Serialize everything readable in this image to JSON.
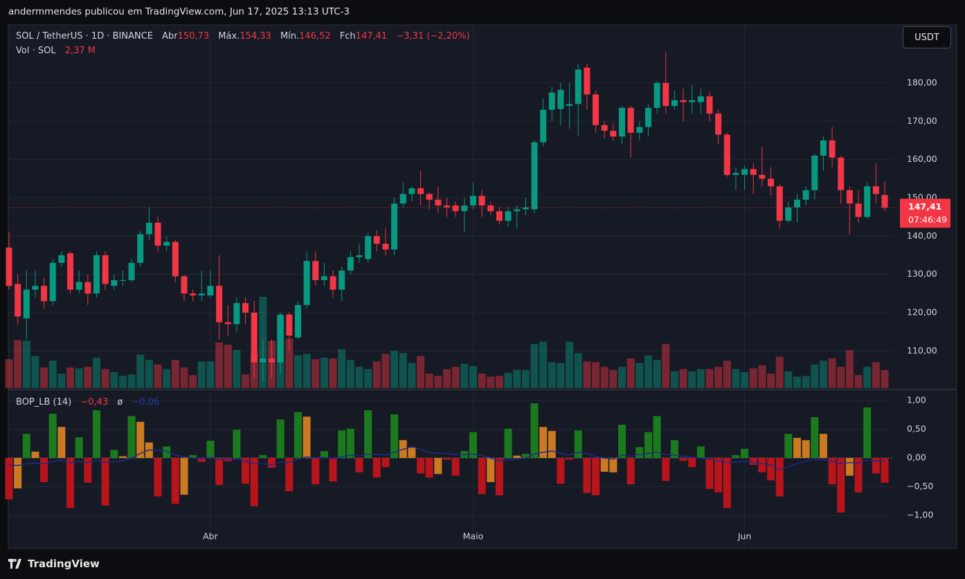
{
  "header": {
    "attribution": "andermmendes publicou em TradingView.com, Jun 17, 2025 13:13 UTC-3"
  },
  "footer": {
    "brand": "TradingView"
  },
  "chart_data": [
    {
      "type": "candlestick",
      "title": "SOL / TetherUS · 1D · BINANCE",
      "legend": {
        "open_label": "Abr",
        "open": "150,73",
        "high_label": "Máx.",
        "high": "154,33",
        "low_label": "Mín.",
        "low": "146,52",
        "close_label": "Fch",
        "close": "147,41",
        "change": "−3,31 (−2,20%)"
      },
      "volume_title": "Vol · SOL",
      "volume_value_label": "2,37 M",
      "currency": "USDT",
      "last_price_label": "147,41",
      "countdown": "07:46:49",
      "up_color": "#089981",
      "down_color": "#f23645",
      "categories": [
        null,
        null,
        null,
        null,
        null,
        null,
        null,
        null,
        null,
        null,
        null,
        null,
        null,
        null,
        null,
        null,
        null,
        null,
        null,
        null,
        null,
        null,
        null,
        "Abr",
        null,
        null,
        null,
        null,
        null,
        null,
        null,
        null,
        null,
        null,
        null,
        null,
        null,
        null,
        null,
        null,
        null,
        null,
        null,
        null,
        null,
        null,
        null,
        null,
        null,
        null,
        null,
        null,
        null,
        "Maio",
        null,
        null,
        null,
        null,
        null,
        null,
        null,
        null,
        null,
        null,
        null,
        null,
        null,
        null,
        null,
        null,
        null,
        null,
        null,
        null,
        null,
        null,
        null,
        null,
        null,
        null,
        null,
        null,
        null,
        null,
        "Jun",
        null,
        null,
        null,
        null,
        null,
        null,
        null,
        null,
        null,
        null,
        null,
        null,
        null,
        null,
        null,
        null
      ],
      "open": [
        137,
        127.5,
        118.5,
        126,
        127,
        123,
        133,
        135.5,
        126,
        128,
        125,
        135,
        127,
        128.3,
        128.5,
        133,
        140.5,
        143.5,
        137.5,
        138.5,
        129.5,
        125,
        124.5,
        124.5,
        127,
        117.5,
        117,
        122.5,
        120,
        107,
        108,
        107,
        119.5,
        113.5,
        122,
        133.5,
        128.5,
        129.5,
        126,
        131,
        134.5,
        134,
        140,
        138,
        136.5,
        148.5,
        151,
        152.5,
        151,
        149.5,
        148,
        148,
        146.5,
        148,
        150.5,
        148,
        146.5,
        144,
        146.5,
        147,
        147,
        164.5,
        173,
        173.2,
        174,
        174.5,
        184,
        177,
        169,
        167.5,
        166,
        173.5,
        167,
        168.5,
        173.5,
        180,
        174,
        175.5,
        175,
        175,
        176.5,
        172,
        166.5,
        156,
        156,
        157.5,
        156,
        155,
        153,
        144,
        147.5,
        149.5,
        152,
        161,
        165,
        160.5,
        152,
        148.5,
        145,
        153,
        150.73
      ],
      "high": [
        141,
        130,
        131,
        131,
        129,
        134,
        136,
        136,
        131,
        130,
        136,
        136,
        130,
        131,
        134,
        141.5,
        147.5,
        145,
        140,
        139,
        130,
        126,
        131,
        131,
        135,
        122,
        124,
        124,
        123,
        113,
        113,
        120,
        120,
        123,
        136,
        136,
        133,
        131,
        132,
        136,
        138,
        141,
        141.5,
        142,
        150,
        154,
        153,
        157,
        151.5,
        153,
        150,
        149,
        150,
        154,
        152,
        149,
        147.5,
        147.5,
        148,
        150,
        165,
        176,
        179,
        180,
        180,
        185,
        185,
        178,
        170,
        169.5,
        174,
        174,
        170,
        174.5,
        180.5,
        188,
        178,
        178.5,
        179.5,
        178.5,
        177.5,
        173,
        167,
        158,
        158.5,
        159,
        163.5,
        158,
        153.5,
        149,
        151,
        153,
        161.5,
        166,
        168.5,
        161,
        153,
        152,
        154,
        159,
        154.33
      ],
      "low": [
        126,
        117,
        113,
        124,
        121,
        122,
        132,
        125,
        125,
        122,
        124,
        126,
        126,
        127,
        128,
        132,
        139,
        136,
        136,
        128,
        123,
        123,
        123,
        124,
        113,
        114,
        115,
        117,
        103,
        102,
        103,
        104,
        110,
        113,
        121,
        127,
        127,
        124,
        123,
        130,
        133,
        133,
        136,
        135,
        135,
        147.5,
        149,
        148,
        147,
        146,
        145,
        145,
        141,
        147,
        145,
        145.5,
        143,
        142.5,
        142,
        145.5,
        146,
        163.5,
        170,
        169,
        168,
        166,
        173,
        167,
        165.5,
        165,
        164,
        160.5,
        165,
        166,
        172,
        172,
        173,
        170,
        172,
        172,
        170,
        164,
        155.5,
        152,
        152,
        151,
        153,
        150.5,
        142,
        143.5,
        143.5,
        148,
        149.5,
        157,
        158,
        148.5,
        140.5,
        143.5,
        144.5,
        148.5,
        146.52
      ],
      "close": [
        127,
        119,
        126,
        127,
        123,
        133,
        135,
        126,
        128,
        125,
        135,
        127.5,
        128.5,
        128.5,
        133,
        140.5,
        143.5,
        137.5,
        138.5,
        129.5,
        125,
        124.5,
        125,
        127,
        117.5,
        117,
        122.5,
        120,
        107,
        108,
        107,
        119.5,
        114,
        122,
        133.5,
        128.5,
        129.5,
        126,
        131,
        134.5,
        135,
        140,
        138,
        136.5,
        148.5,
        151,
        152.5,
        151,
        149.5,
        148,
        147.5,
        146.5,
        148,
        150.5,
        148,
        146.5,
        144,
        146.5,
        147,
        147.5,
        164.5,
        173,
        177.5,
        178.2,
        174.5,
        183.5,
        177,
        169,
        167.5,
        166,
        173.5,
        167,
        168.5,
        173.5,
        180,
        174,
        175.5,
        175,
        175.5,
        176.5,
        172,
        166.5,
        156,
        156.5,
        157.5,
        156,
        155,
        153,
        144,
        147.5,
        149.5,
        152,
        161,
        165,
        160.5,
        152,
        148.5,
        145,
        153,
        151,
        147.41
      ],
      "volume": [
        3.8,
        6.3,
        6.2,
        4.2,
        2.7,
        3.6,
        1.9,
        2.7,
        2.6,
        2.8,
        4.0,
        2.5,
        2.1,
        1.6,
        1.8,
        4.4,
        3.7,
        3.1,
        2.5,
        3.7,
        2.7,
        1.7,
        3.5,
        3.5,
        6.0,
        5.7,
        5.0,
        1.8,
        4.5,
        12.0,
        6.2,
        9.4,
        6.5,
        4.3,
        4.5,
        3.8,
        4.0,
        3.9,
        5.1,
        3.7,
        2.8,
        2.5,
        3.5,
        4.5,
        4.9,
        4.6,
        3.3,
        4.2,
        1.9,
        1.6,
        2.5,
        2.8,
        3.2,
        2.9,
        1.9,
        1.5,
        1.6,
        2.0,
        2.4,
        2.4,
        5.8,
        6.1,
        3.4,
        3.3,
        6.1,
        4.6,
        3.5,
        3.4,
        2.8,
        2.4,
        2.8,
        3.9,
        3.3,
        4.3,
        3.7,
        5.8,
        2.2,
        2.5,
        2.2,
        2.5,
        2.5,
        2.8,
        3.6,
        2.5,
        2.1,
        2.6,
        3.0,
        1.9,
        4.1,
        2.2,
        1.5,
        1.6,
        3.1,
        3.6,
        3.9,
        2.8,
        5.0,
        1.7,
        2.8,
        3.4,
        2.37
      ],
      "ylim": [
        100.3,
        194.8
      ],
      "yticks": [
        {
          "value": 110,
          "label": "110,00"
        },
        {
          "value": 120,
          "label": "120,00"
        },
        {
          "value": 130,
          "label": "130,00"
        },
        {
          "value": 140,
          "label": "140,00"
        },
        {
          "value": 150,
          "label": "150,00"
        },
        {
          "value": 160,
          "label": "160,00"
        },
        {
          "value": 170,
          "label": "170,00"
        },
        {
          "value": 180,
          "label": "180,00"
        }
      ],
      "grid": true
    },
    {
      "type": "bar",
      "title": "BOP_LB (14)",
      "value_label": "−0,43",
      "signal_symbol": "ø",
      "signal_label": "−0,06",
      "values": [
        -0.72,
        -0.53,
        0.42,
        0.11,
        -0.42,
        0.77,
        0.54,
        -0.87,
        0.36,
        -0.43,
        0.83,
        -0.83,
        0.14,
        0.03,
        0.73,
        0.63,
        0.27,
        -0.67,
        0.2,
        -0.8,
        -0.64,
        0.05,
        -0.07,
        0.3,
        -0.47,
        -0.06,
        0.49,
        -0.45,
        -0.84,
        0.05,
        -0.17,
        0.67,
        -0.58,
        0.8,
        0.72,
        -0.46,
        0.12,
        -0.41,
        0.48,
        0.51,
        -0.25,
        0.83,
        -0.34,
        -0.16,
        0.76,
        0.31,
        0.18,
        -0.27,
        -0.34,
        -0.28,
        -0.03,
        -0.31,
        0.12,
        0.45,
        -0.63,
        -0.42,
        -0.65,
        0.51,
        0.04,
        0.07,
        0.95,
        0.54,
        0.47,
        -0.45,
        -0.03,
        0.48,
        -0.61,
        -0.65,
        -0.24,
        -0.25,
        0.58,
        -0.46,
        0.19,
        0.45,
        0.73,
        -0.4,
        0.31,
        -0.05,
        -0.16,
        0.2,
        -0.54,
        -0.6,
        -0.87,
        0.05,
        0.16,
        -0.12,
        -0.25,
        -0.39,
        -0.67,
        0.42,
        0.35,
        0.31,
        0.71,
        0.42,
        -0.46,
        -0.95,
        -0.31,
        -0.6,
        0.88,
        -0.27,
        -0.43
      ],
      "colors": [
        "#b8141c",
        "#cc7a22",
        "#1b7a1e",
        "#cc7a22",
        "#b8141c",
        "#1b7a1e",
        "#cc7a22",
        "#b8141c",
        "#1b7a1e",
        "#b8141c",
        "#1b7a1e",
        "#b8141c",
        "#1b7a1e",
        "#cc7a22",
        "#1b7a1e",
        "#cc7a22",
        "#cc7a22",
        "#b8141c",
        "#1b7a1e",
        "#b8141c",
        "#cc7a22",
        "#1b7a1e",
        "#b8141c",
        "#1b7a1e",
        "#b8141c",
        "#b8141c",
        "#1b7a1e",
        "#b8141c",
        "#b8141c",
        "#1b7a1e",
        "#b8141c",
        "#1b7a1e",
        "#b8141c",
        "#1b7a1e",
        "#cc7a22",
        "#b8141c",
        "#1b7a1e",
        "#b8141c",
        "#1b7a1e",
        "#1b7a1e",
        "#b8141c",
        "#1b7a1e",
        "#b8141c",
        "#b8141c",
        "#1b7a1e",
        "#cc7a22",
        "#cc7a22",
        "#b8141c",
        "#b8141c",
        "#cc7a22",
        "#b8141c",
        "#b8141c",
        "#1b7a1e",
        "#1b7a1e",
        "#b8141c",
        "#cc7a22",
        "#b8141c",
        "#1b7a1e",
        "#cc7a22",
        "#1b7a1e",
        "#1b7a1e",
        "#cc7a22",
        "#cc7a22",
        "#b8141c",
        "#b8141c",
        "#1b7a1e",
        "#b8141c",
        "#b8141c",
        "#cc7a22",
        "#cc7a22",
        "#1b7a1e",
        "#b8141c",
        "#1b7a1e",
        "#1b7a1e",
        "#1b7a1e",
        "#b8141c",
        "#1b7a1e",
        "#b8141c",
        "#b8141c",
        "#1b7a1e",
        "#b8141c",
        "#b8141c",
        "#b8141c",
        "#1b7a1e",
        "#1b7a1e",
        "#b8141c",
        "#b8141c",
        "#b8141c",
        "#b8141c",
        "#1b7a1e",
        "#cc7a22",
        "#cc7a22",
        "#1b7a1e",
        "#cc7a22",
        "#b8141c",
        "#b8141c",
        "#cc7a22",
        "#b8141c",
        "#1b7a1e",
        "#b8141c",
        "#b8141c"
      ],
      "signal": [
        -0.12,
        -0.13,
        -0.1,
        -0.09,
        -0.1,
        -0.06,
        -0.04,
        -0.08,
        -0.06,
        -0.08,
        -0.04,
        -0.08,
        -0.06,
        -0.05,
        0.0,
        0.08,
        0.14,
        0.13,
        0.12,
        0.05,
        0.02,
        0.0,
        -0.01,
        0.01,
        -0.03,
        -0.03,
        -0.02,
        -0.06,
        -0.1,
        -0.1,
        -0.12,
        -0.07,
        -0.08,
        -0.02,
        0.02,
        0.0,
        0.01,
        -0.01,
        0.02,
        0.05,
        0.04,
        0.07,
        0.06,
        0.05,
        0.1,
        0.15,
        0.2,
        0.15,
        0.1,
        0.08,
        0.08,
        0.06,
        0.06,
        0.07,
        0.04,
        0.0,
        -0.05,
        -0.03,
        -0.02,
        0.0,
        0.07,
        0.1,
        0.12,
        0.08,
        0.05,
        0.1,
        0.08,
        0.02,
        0.0,
        -0.02,
        0.05,
        0.03,
        0.06,
        0.08,
        0.1,
        0.06,
        0.05,
        0.03,
        0.01,
        0.0,
        -0.02,
        -0.05,
        -0.08,
        -0.07,
        -0.06,
        -0.08,
        -0.1,
        -0.12,
        -0.2,
        -0.15,
        -0.1,
        -0.06,
        -0.02,
        -0.03,
        -0.06,
        -0.1,
        -0.08,
        -0.09,
        -0.04,
        -0.05,
        -0.06
      ],
      "signal_color": "#1f2a8a",
      "ylim": [
        -1.566,
        1.169
      ],
      "yticks": [
        {
          "value": 1,
          "label": "1,00"
        },
        {
          "value": 0.5,
          "label": "0,50"
        },
        {
          "value": 0,
          "label": "0,00"
        },
        {
          "value": -0.5,
          "label": "−0,50"
        },
        {
          "value": -1,
          "label": "−1,00"
        }
      ],
      "grid": true
    }
  ]
}
